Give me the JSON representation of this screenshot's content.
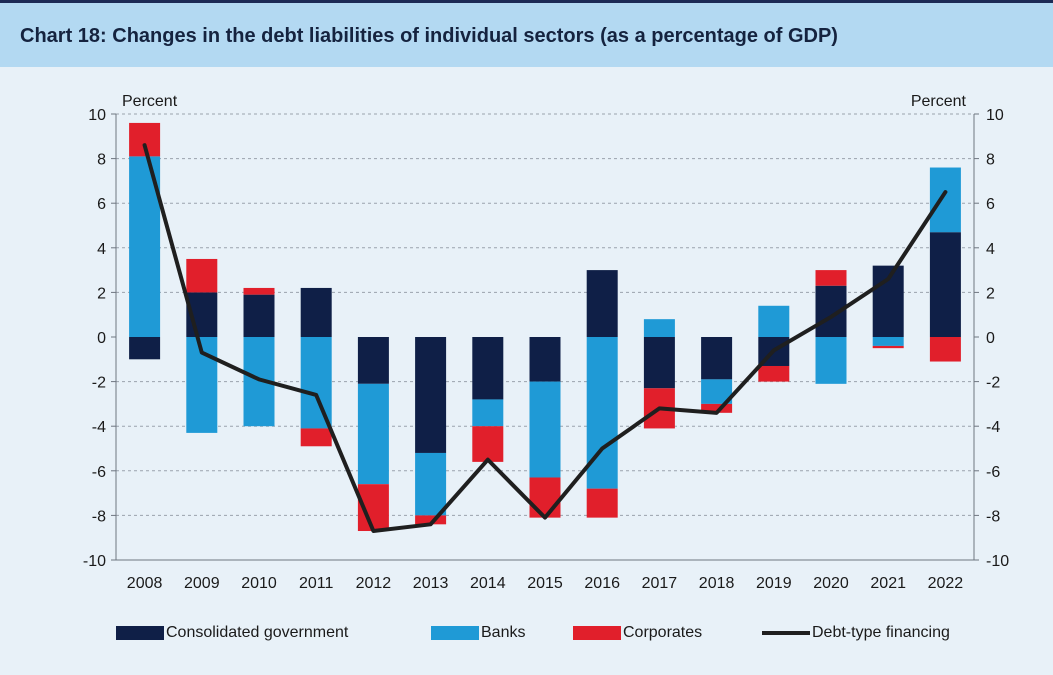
{
  "title": "Chart 18: Changes in the debt liabilities of individual sectors (as a percentage of GDP)",
  "colors": {
    "government": "#0f1f47",
    "banks": "#1f9ad6",
    "corporates": "#e11f2b",
    "line": "#1f1f1f",
    "grid": "#9aa3ad",
    "background": "#e8f1f8",
    "header": "#b3d9f2"
  },
  "chart_data": {
    "type": "bar",
    "stacked": true,
    "categories": [
      "2008",
      "2009",
      "2010",
      "2011",
      "2012",
      "2013",
      "2014",
      "2015",
      "2016",
      "2017",
      "2018",
      "2019",
      "2020",
      "2021",
      "2022"
    ],
    "series": [
      {
        "name": "Consolidated government",
        "key": "government",
        "values": [
          -1.0,
          2.0,
          1.9,
          2.2,
          -2.1,
          -5.2,
          -2.8,
          -2.0,
          3.0,
          -2.3,
          -1.9,
          -1.3,
          2.3,
          3.2,
          4.7
        ]
      },
      {
        "name": "Banks",
        "key": "banks",
        "values": [
          8.1,
          -4.3,
          -4.0,
          -4.1,
          -4.5,
          -2.8,
          -1.2,
          -4.3,
          -6.8,
          0.8,
          -1.1,
          1.4,
          -2.1,
          -0.4,
          2.9
        ]
      },
      {
        "name": "Corporates",
        "key": "corporates",
        "values": [
          1.5,
          1.5,
          0.3,
          -0.8,
          -2.1,
          -0.4,
          -1.6,
          -1.8,
          -1.3,
          -1.8,
          -0.4,
          -0.7,
          0.7,
          -0.1,
          -1.1
        ]
      }
    ],
    "line_series": {
      "name": "Debt-type financing",
      "values": [
        8.6,
        -0.7,
        -1.9,
        -2.6,
        -8.7,
        -8.4,
        -5.5,
        -8.1,
        -5.0,
        -3.2,
        -3.4,
        -0.6,
        0.9,
        2.6,
        6.5
      ]
    },
    "ylabel_left": "Percent",
    "ylabel_right": "Percent",
    "ylim": [
      -10,
      10
    ],
    "yticks": [
      "10",
      "8",
      "6",
      "4",
      "2",
      "0",
      "-2",
      "-4",
      "-6",
      "-8",
      "-10"
    ],
    "grid": true,
    "legend_position": "bottom"
  }
}
